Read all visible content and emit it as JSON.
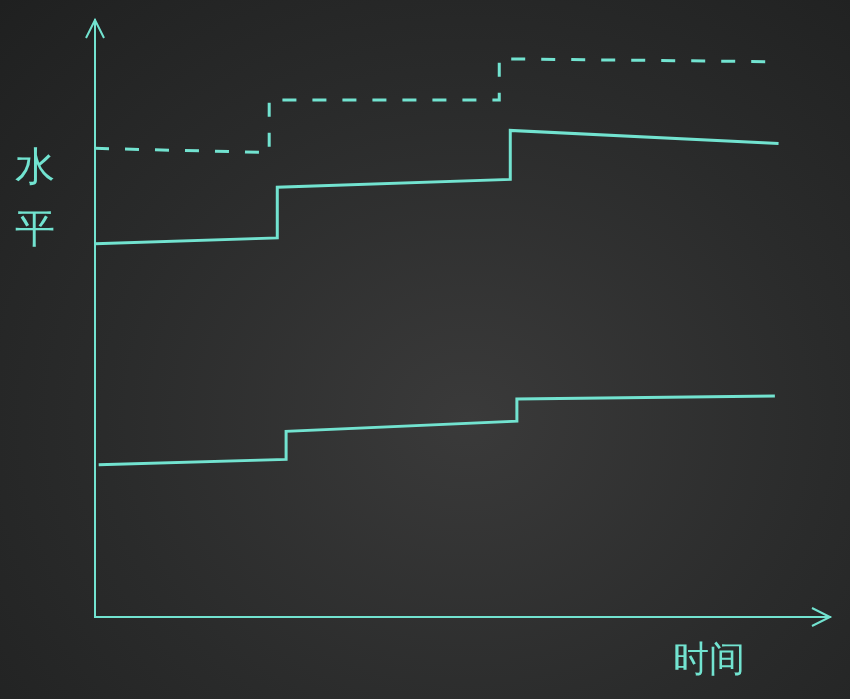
{
  "chart_data": {
    "type": "line",
    "x_label": "时间",
    "y_label": "水平",
    "xlim": [
      0,
      100
    ],
    "ylim": [
      0,
      100
    ],
    "grid": false,
    "tick_labels": false,
    "color": "#72e3d0",
    "series": [
      {
        "line_style": "dashed",
        "x": [
          0,
          23.7,
          23.7,
          55,
          55,
          93
        ],
        "values": [
          78.5,
          77.8,
          86.6,
          86.6,
          93.5,
          93.0
        ]
      },
      {
        "line_style": "solid",
        "x": [
          0,
          24.8,
          24.8,
          56.5,
          56.5,
          93
        ],
        "values": [
          62.5,
          63.5,
          72.0,
          73.3,
          81.5,
          79.3
        ]
      },
      {
        "line_style": "solid",
        "x": [
          0.5,
          26,
          26,
          57.4,
          57.4,
          92.5
        ],
        "values": [
          25.5,
          26.4,
          31.1,
          32.8,
          36.5,
          37.0
        ]
      }
    ]
  }
}
